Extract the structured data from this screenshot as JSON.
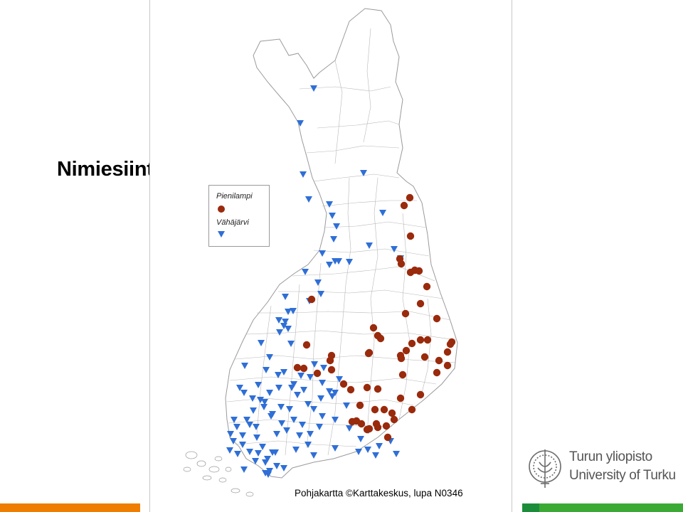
{
  "slide": {
    "title": "Nimiesiintymät"
  },
  "legend": {
    "items": [
      {
        "label": "Pienilampi",
        "symbol": "circle",
        "color": "#9a2a0c"
      },
      {
        "label": "Vähäjärvi",
        "symbol": "triangle-down",
        "color": "#2f6fd6"
      }
    ]
  },
  "map": {
    "credit": "Pohjakartta ©Karttakeskus, lupa N0346"
  },
  "logo": {
    "name_fi": "Turun yliopisto",
    "name_en": "University of Turku"
  },
  "colors": {
    "pienilampi": "#9a2a0c",
    "vahajarvi": "#2f6fd6",
    "border": "#9a9a9a",
    "footer_orange": "#ef7d00",
    "footer_green": "#3aaa35"
  }
}
